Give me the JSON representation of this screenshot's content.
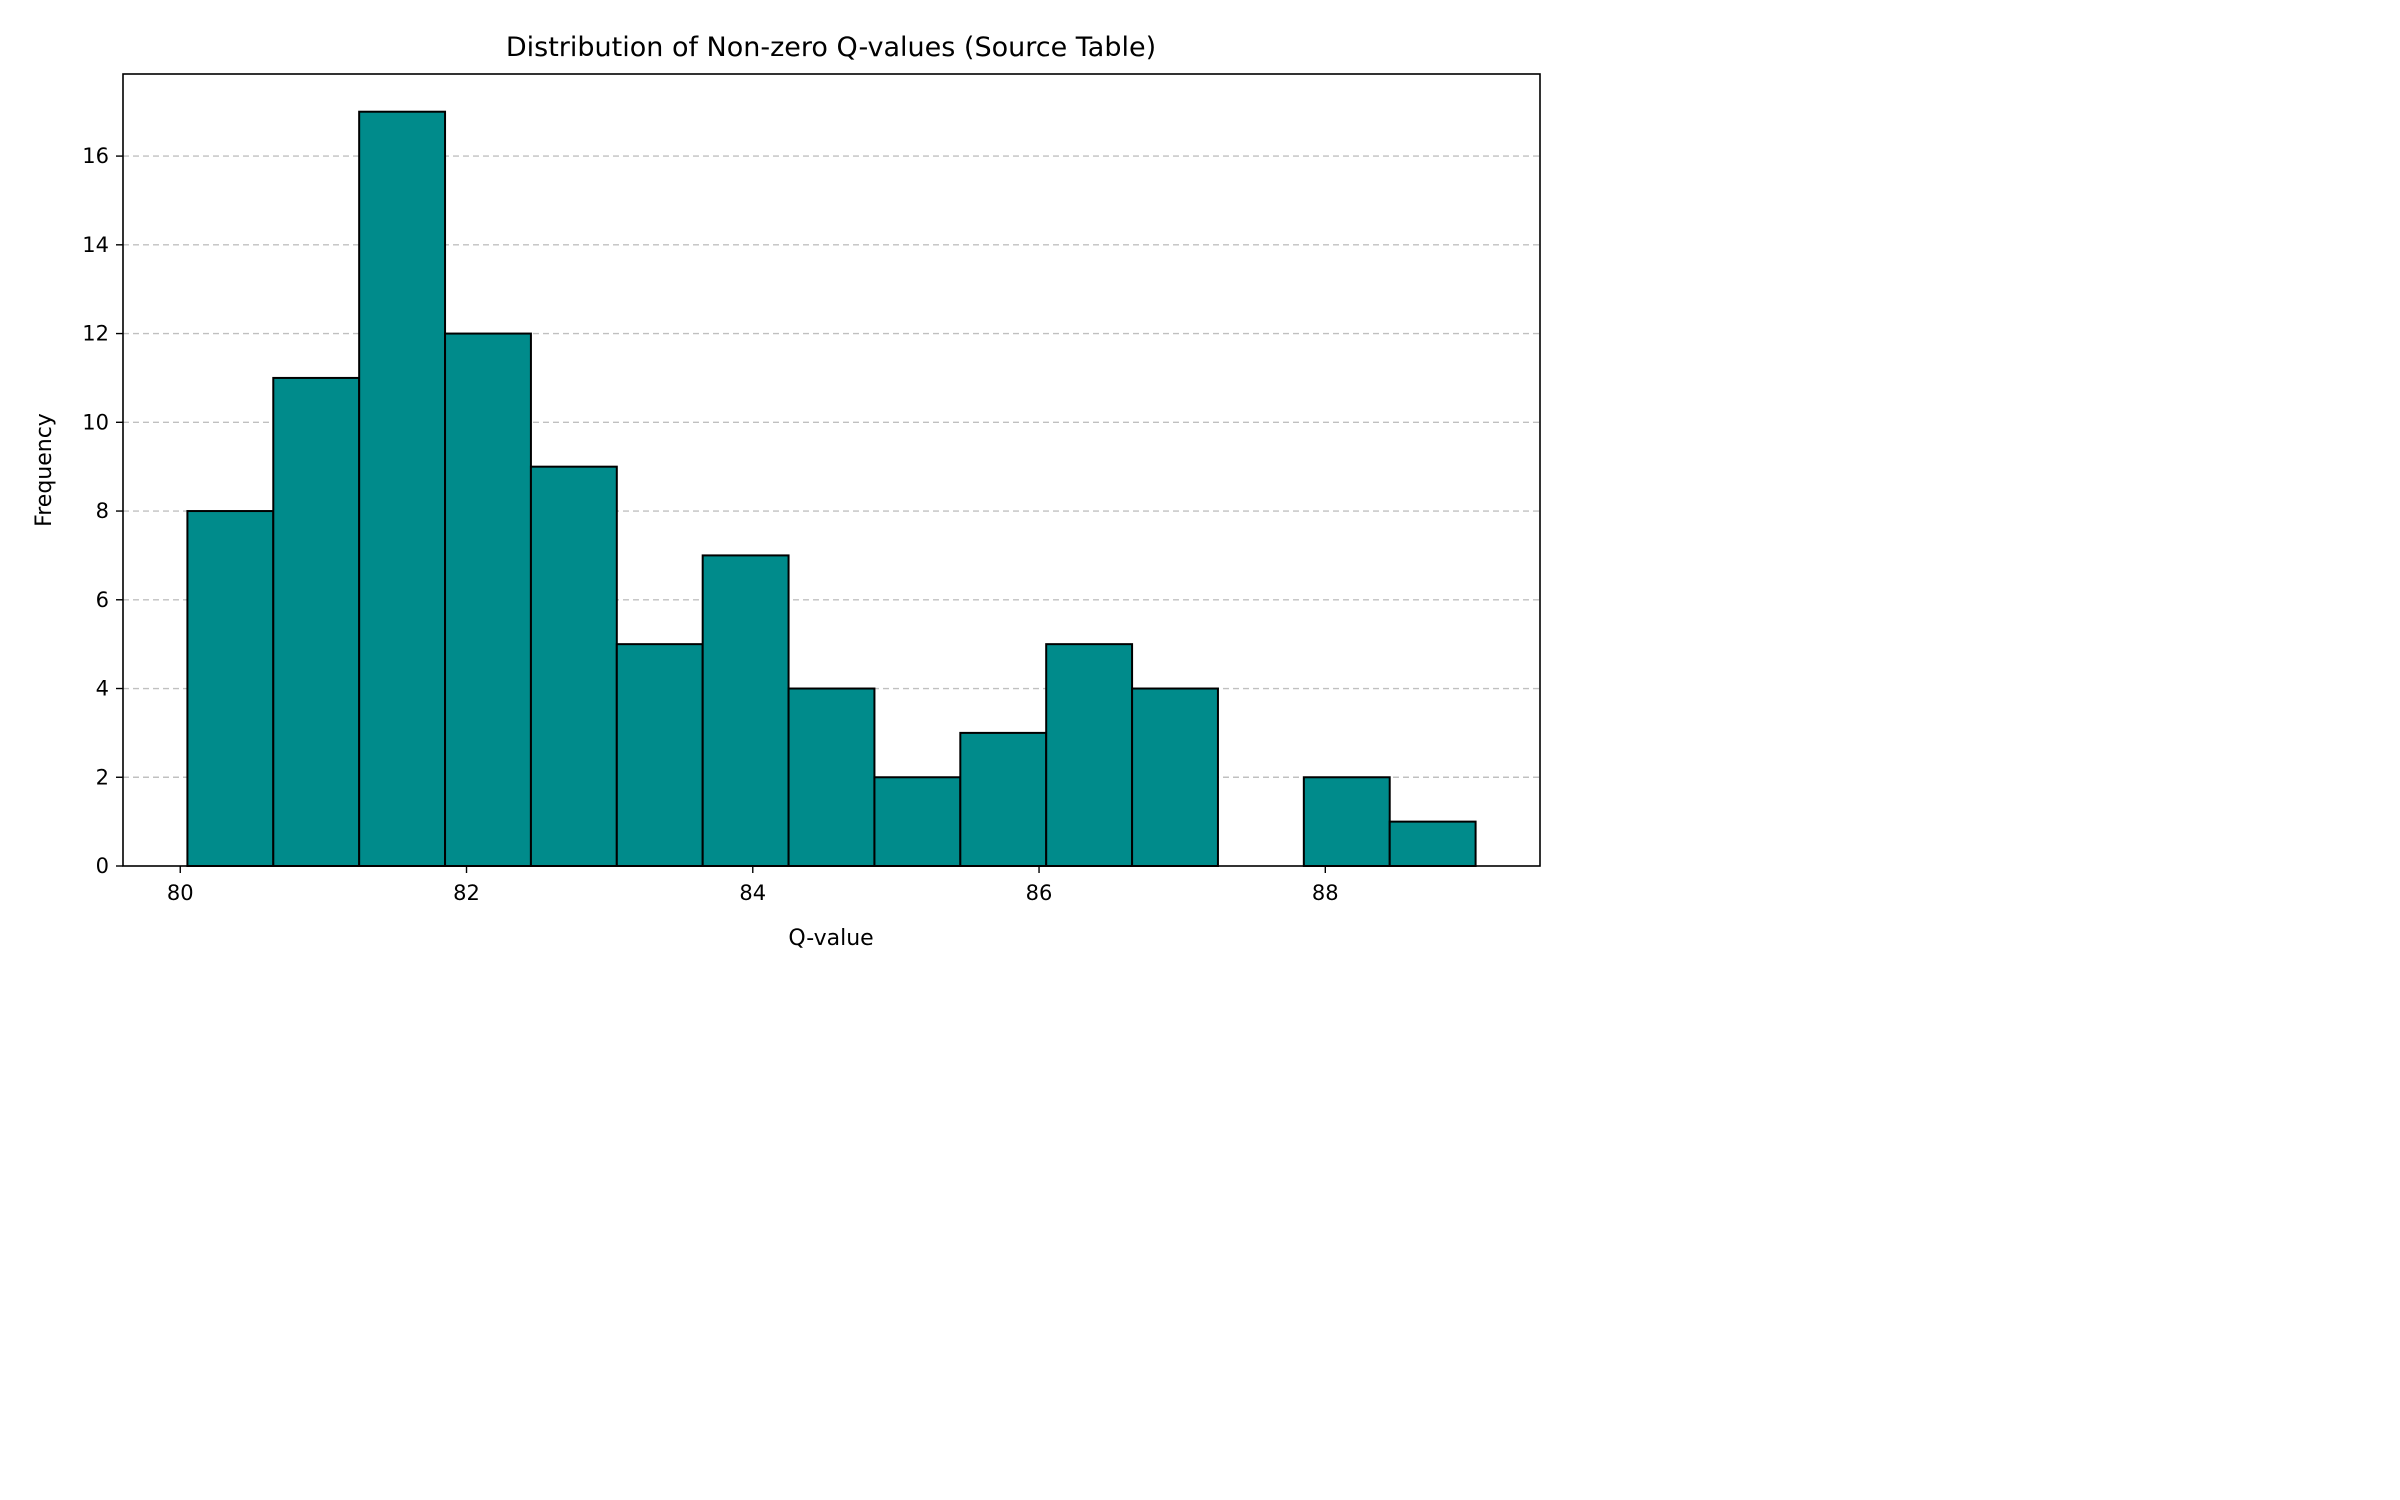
{
  "chart_data": {
    "type": "bar",
    "title": "Distribution of Non-zero Q-values (Source Table)",
    "xlabel": "Q-value",
    "ylabel": "Frequency",
    "bin_edges": [
      80.05,
      80.65,
      81.25,
      81.85,
      82.45,
      83.05,
      83.65,
      84.25,
      84.85,
      85.45,
      86.05,
      86.65,
      87.25,
      87.85,
      88.45,
      89.05
    ],
    "values": [
      8,
      11,
      17,
      12,
      9,
      5,
      7,
      4,
      2,
      3,
      5,
      4,
      0,
      2,
      1
    ],
    "xlim": [
      79.6,
      89.5
    ],
    "ylim": [
      0,
      17.85
    ],
    "xticks": [
      80,
      82,
      84,
      86,
      88
    ],
    "yticks": [
      0,
      2,
      4,
      6,
      8,
      10,
      12,
      14,
      16
    ],
    "grid": "y-dashed",
    "colors": {
      "bar_fill": "#008b8b",
      "bar_edge": "#000000",
      "grid": "#c0c0c0"
    }
  }
}
